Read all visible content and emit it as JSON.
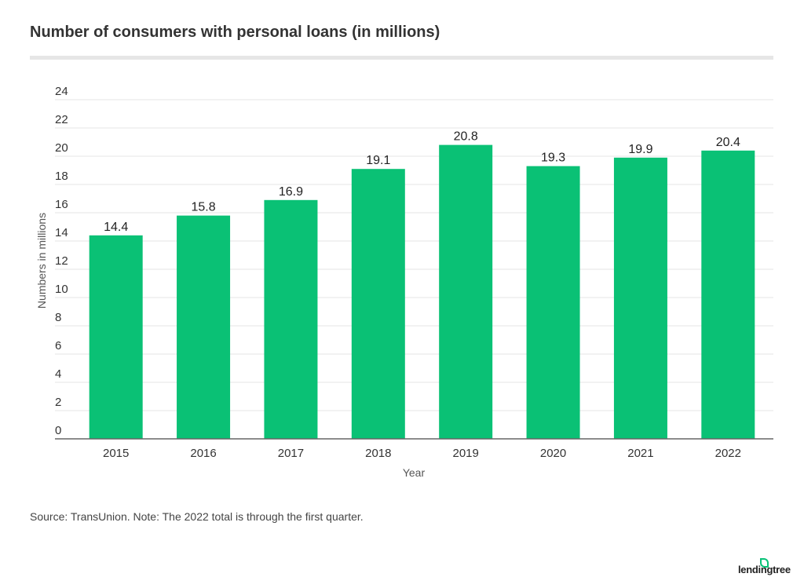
{
  "title": "Number of consumers with personal loans (in millions)",
  "source": "Source: TransUnion. Note: The 2022 total is through the first quarter.",
  "logo": "lendingtree",
  "colors": {
    "bar": "#0ac175",
    "grid": "#e6e6e6",
    "axis": "#666666",
    "text": "#333333"
  },
  "chart_data": {
    "type": "bar",
    "title": "Number of consumers with personal loans (in millions)",
    "xlabel": "Year",
    "ylabel": "Numbers in millions",
    "categories": [
      "2015",
      "2016",
      "2017",
      "2018",
      "2019",
      "2020",
      "2021",
      "2022"
    ],
    "values": [
      14.4,
      15.8,
      16.9,
      19.1,
      20.8,
      19.3,
      19.9,
      20.4
    ],
    "data_labels": [
      "14.4",
      "15.8",
      "16.9",
      "19.1",
      "20.8",
      "19.3",
      "19.9",
      "20.4"
    ],
    "ylim": [
      0,
      24
    ],
    "yticks": [
      0,
      2,
      4,
      6,
      8,
      10,
      12,
      14,
      16,
      18,
      20,
      22,
      24
    ],
    "grid": true,
    "legend": "none"
  }
}
